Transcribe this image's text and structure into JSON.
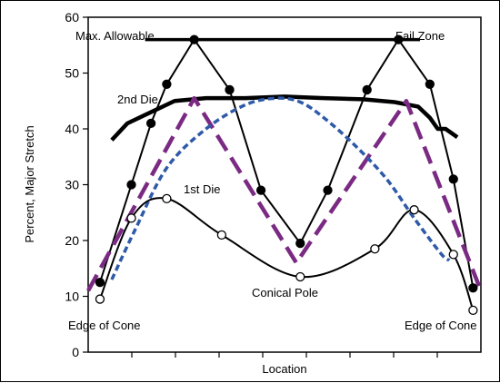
{
  "chart_data": {
    "type": "line",
    "xlabel": "Location",
    "ylabel": "Percent, Major Stretch",
    "xlim": [
      0,
      100
    ],
    "ylim": [
      0,
      60
    ],
    "yticks": [
      0,
      10,
      20,
      30,
      40,
      50,
      60
    ],
    "colors": {
      "first_die": "#000000",
      "second_die": "#000000",
      "zigzag": "#000000",
      "purple_dash": "#7b2a83",
      "blue_dot": "#2e5aa8",
      "fail_zone": "#000000"
    },
    "series": [
      {
        "id": "fail_zone",
        "style": "thick-solid",
        "x": [
          14.5,
          84.5
        ],
        "y": [
          56,
          56
        ]
      },
      {
        "id": "zigzag",
        "style": "line-filled-markers",
        "x": [
          3,
          11,
          16,
          20,
          27,
          36,
          44,
          54,
          61,
          71,
          79,
          87,
          93,
          98
        ],
        "y": [
          12.5,
          30,
          41,
          48,
          56,
          47,
          29,
          19.5,
          29,
          47,
          56,
          48,
          31,
          11.5
        ]
      },
      {
        "id": "second_die",
        "style": "thick-solid",
        "name": "2nd Die",
        "x": [
          6,
          10,
          16,
          22,
          30,
          40,
          50,
          60,
          70,
          78,
          84,
          87,
          89,
          91,
          94
        ],
        "y": [
          38,
          41,
          43,
          45,
          45.5,
          45.5,
          45.8,
          45.5,
          45.3,
          44.8,
          44,
          42,
          40,
          40,
          38.5
        ]
      },
      {
        "id": "purple_dash",
        "style": "long-dash",
        "x": [
          0,
          27,
          53,
          81,
          100
        ],
        "y": [
          11,
          45.5,
          16,
          45,
          11
        ]
      },
      {
        "id": "blue_dot",
        "style": "dotted",
        "x": [
          6,
          12,
          20,
          30,
          40,
          48,
          54,
          60,
          68,
          76,
          83,
          90,
          92
        ],
        "y": [
          13,
          22,
          33,
          40,
          44.3,
          45.5,
          44.8,
          42,
          37,
          31,
          24,
          17.5,
          16.5
        ]
      },
      {
        "id": "first_die",
        "style": "line-open-markers",
        "name": "1st Die",
        "x": [
          3,
          11,
          20,
          34,
          54,
          73,
          83,
          93,
          98
        ],
        "y": [
          9.5,
          24,
          27.5,
          21,
          13.5,
          18.5,
          25.5,
          17.5,
          7.5
        ]
      }
    ],
    "annotations": [
      {
        "id": "max_allowable",
        "text": "Max. Allowable"
      },
      {
        "id": "fail_zone",
        "text": "Fail Zone"
      },
      {
        "id": "second_die",
        "text": "2nd Die"
      },
      {
        "id": "first_die",
        "text": "1st Die"
      },
      {
        "id": "conical_pole",
        "text": "Conical Pole"
      },
      {
        "id": "edge_left",
        "text": "Edge of Cone"
      },
      {
        "id": "edge_right",
        "text": "Edge of Cone"
      }
    ]
  }
}
